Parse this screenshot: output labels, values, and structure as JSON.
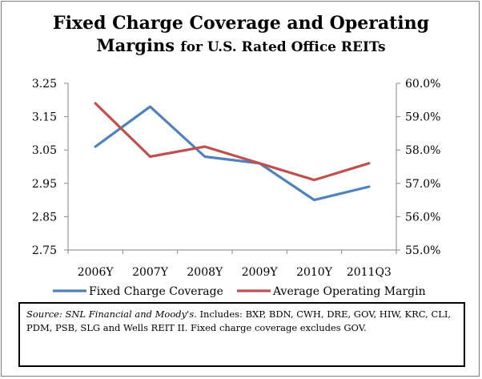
{
  "chart_data": {
    "type": "line",
    "title": "Fixed Charge Coverage and Operating",
    "subtitle_main": "Margins",
    "subtitle_small": "for U.S. Rated Office REITs",
    "categories": [
      "2006Y",
      "2007Y",
      "2008Y",
      "2009Y",
      "2010Y",
      "2011Q3"
    ],
    "y_left": {
      "ticks": [
        "3.25",
        "3.15",
        "3.05",
        "2.95",
        "2.85",
        "2.75"
      ],
      "ylim": [
        2.75,
        3.25
      ]
    },
    "y_right": {
      "ticks": [
        "60.0%",
        "59.0%",
        "58.0%",
        "57.0%",
        "56.0%",
        "55.0%"
      ],
      "ylim": [
        55.0,
        60.0
      ]
    },
    "series": [
      {
        "name": "Fixed Charge Coverage",
        "axis": "left",
        "color": "#4f81bd",
        "values": [
          3.06,
          3.18,
          3.03,
          3.01,
          2.9,
          2.94
        ]
      },
      {
        "name": "Average Operating Margin",
        "axis": "right",
        "color": "#c0504d",
        "values": [
          59.4,
          57.8,
          58.1,
          57.6,
          57.1,
          57.6
        ]
      }
    ],
    "grid": false,
    "legend": "bottom"
  },
  "source_note": {
    "italic": "Source: SNL Financial and Moody's.",
    "text": " Includes: BXP, BDN, CWH, DRE, GOV, HIW, KRC, CLI, PDM, PSB, SLG and Wells REIT II. Fixed charge coverage excludes GOV."
  }
}
